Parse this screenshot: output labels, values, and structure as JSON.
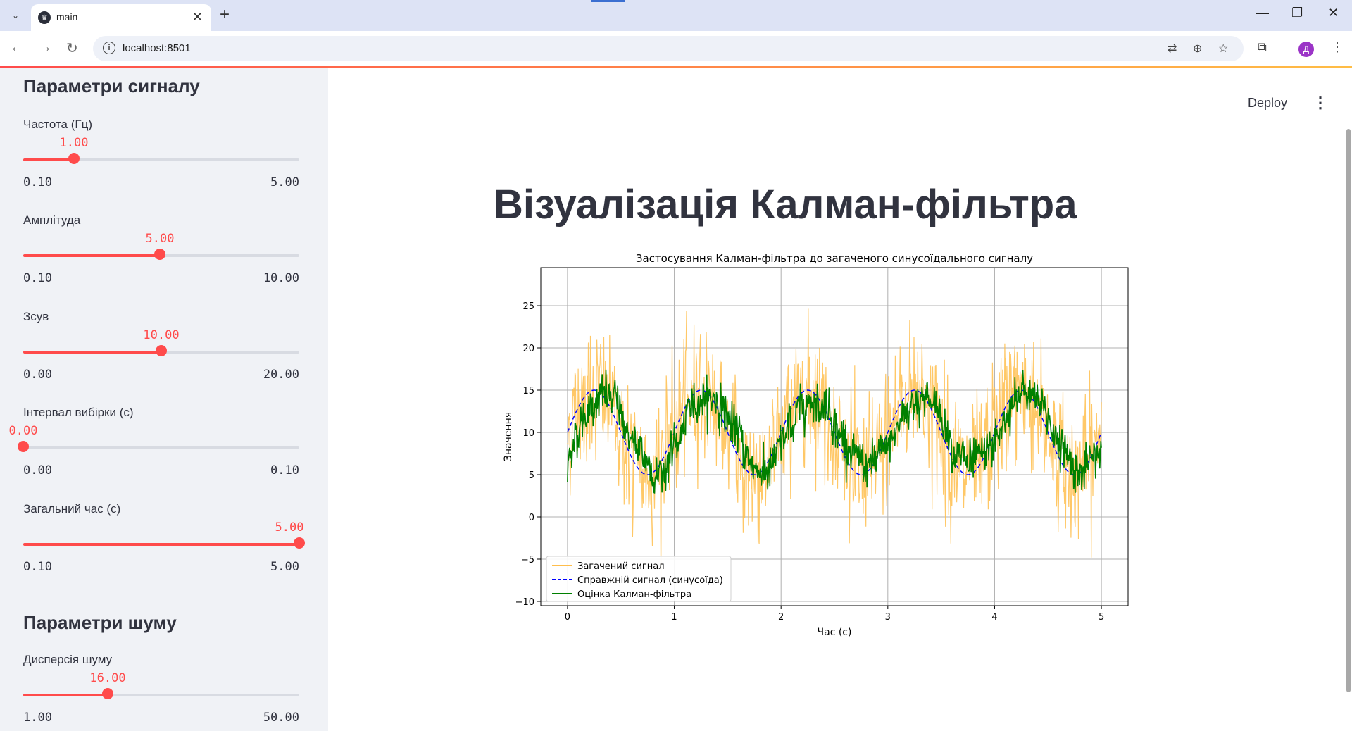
{
  "browser": {
    "tab_title": "main",
    "url": "localhost:8501",
    "profile_initial": "Д"
  },
  "header": {
    "deploy_label": "Deploy"
  },
  "sidebar": {
    "signal_section_title": "Параметри сигналу",
    "noise_section_title": "Параметри шуму",
    "sliders": [
      {
        "label": "Частота (Гц)",
        "value": 1.0,
        "value_text": "1.00",
        "min_text": "0.10",
        "max_text": "5.00",
        "min": 0.1,
        "max": 5.0
      },
      {
        "label": "Амплітуда",
        "value": 5.0,
        "value_text": "5.00",
        "min_text": "0.10",
        "max_text": "10.00",
        "min": 0.1,
        "max": 10.0
      },
      {
        "label": "Зсув",
        "value": 10.0,
        "value_text": "10.00",
        "min_text": "0.00",
        "max_text": "20.00",
        "min": 0.0,
        "max": 20.0
      },
      {
        "label": "Інтервал вибірки (с)",
        "value": 0.0,
        "value_text": "0.00",
        "min_text": "0.00",
        "max_text": "0.10",
        "min": 0.0,
        "max": 0.1
      },
      {
        "label": "Загальний час (с)",
        "value": 5.0,
        "value_text": "5.00",
        "min_text": "0.10",
        "max_text": "5.00",
        "min": 0.1,
        "max": 5.0
      },
      {
        "label": "Дисперсія шуму",
        "value": 16.0,
        "value_text": "16.00",
        "min_text": "1.00",
        "max_text": "50.00",
        "min": 1.0,
        "max": 50.0
      }
    ]
  },
  "main": {
    "title": "Візуалізація Калман-фільтра"
  },
  "chart_data": {
    "type": "line",
    "title": "Застосування Калман-фільтра до загаченого синусоїдального сигналу",
    "xlabel": "Час (с)",
    "ylabel": "Значення",
    "xlim": [
      -0.25,
      5.25
    ],
    "ylim": [
      -10.5,
      29.5
    ],
    "xticks": [
      0,
      1,
      2,
      3,
      4,
      5
    ],
    "yticks": [
      -10,
      -5,
      0,
      5,
      10,
      15,
      20,
      25
    ],
    "grid": true,
    "legend_position": "lower-left",
    "series": [
      {
        "name": "Загачений сигнал",
        "color": "#ffbe4c",
        "style": "solid",
        "frequency_hz": 1.0,
        "amplitude": 5.0,
        "offset": 10.0,
        "noise_std": 4.0
      },
      {
        "name": "Справжній сигнал (синусоїда)",
        "color": "#0000ff",
        "style": "dashed",
        "frequency_hz": 1.0,
        "amplitude": 5.0,
        "offset": 10.0
      },
      {
        "name": "Оцінка Калман-фільтра",
        "color": "#008000",
        "style": "solid"
      }
    ]
  }
}
